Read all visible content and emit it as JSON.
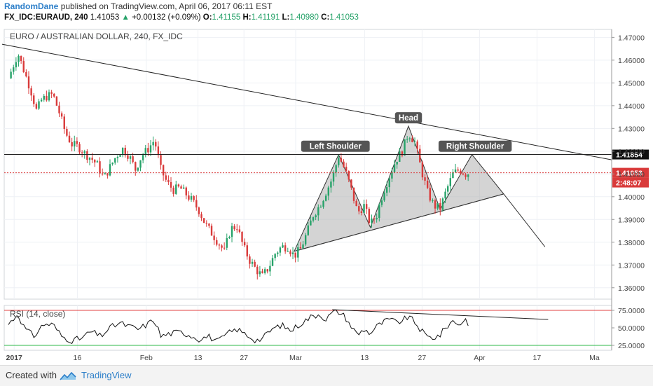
{
  "header": {
    "author": "RandomDane",
    "published": "published on TradingView.com, April 06, 2017 06:11 EST",
    "symbol": "FX_IDC:EURAUD, 240",
    "last": "1.41053",
    "change": "+0.00132 (+0.09%)",
    "o_label": "O:",
    "o_value": "1.41155",
    "h_label": "H:",
    "h_value": "1.41191",
    "l_label": "L:",
    "l_value": "1.40980",
    "c_label": "C:",
    "c_value": "1.41053",
    "up_glyph": "▲"
  },
  "chart_data": {
    "type": "candlestick",
    "title": "EURO / AUSTRALIAN DOLLAR, 240, FX_IDC",
    "ylim": [
      1.355,
      1.4735
    ],
    "y_ticks": [
      "1.36000",
      "1.37000",
      "1.38000",
      "1.39000",
      "1.40000",
      "1.41000",
      "1.42000",
      "1.43000",
      "1.44000",
      "1.45000",
      "1.46000",
      "1.47000"
    ],
    "x_ticks": [
      "2017",
      "16",
      "Feb",
      "13",
      "27",
      "Mar",
      "13",
      "27",
      "Apr",
      "17",
      "Ma"
    ],
    "price_labels": {
      "resistance": "1.41854",
      "last": "1.41053",
      "countdown": "2:48:07"
    },
    "horizontal_line": 1.41854,
    "last_price_line": 1.41053,
    "path": [
      {
        "t": 0,
        "p": 1.452
      },
      {
        "t": 3,
        "p": 1.463
      },
      {
        "t": 5,
        "p": 1.455
      },
      {
        "t": 7,
        "p": 1.447
      },
      {
        "t": 9,
        "p": 1.437
      },
      {
        "t": 10,
        "p": 1.442
      },
      {
        "t": 12,
        "p": 1.444
      },
      {
        "t": 14,
        "p": 1.445
      },
      {
        "t": 16,
        "p": 1.437
      },
      {
        "t": 18,
        "p": 1.428
      },
      {
        "t": 20,
        "p": 1.423
      },
      {
        "t": 22,
        "p": 1.422
      },
      {
        "t": 24,
        "p": 1.419
      },
      {
        "t": 26,
        "p": 1.417
      },
      {
        "t": 28,
        "p": 1.414
      },
      {
        "t": 30,
        "p": 1.408
      },
      {
        "t": 32,
        "p": 1.413
      },
      {
        "t": 34,
        "p": 1.418
      },
      {
        "t": 36,
        "p": 1.421
      },
      {
        "t": 38,
        "p": 1.418
      },
      {
        "t": 40,
        "p": 1.412
      },
      {
        "t": 42,
        "p": 1.418
      },
      {
        "t": 44,
        "p": 1.421
      },
      {
        "t": 46,
        "p": 1.425
      },
      {
        "t": 48,
        "p": 1.412
      },
      {
        "t": 50,
        "p": 1.406
      },
      {
        "t": 52,
        "p": 1.403
      },
      {
        "t": 54,
        "p": 1.404
      },
      {
        "t": 56,
        "p": 1.401
      },
      {
        "t": 58,
        "p": 1.398
      },
      {
        "t": 60,
        "p": 1.394
      },
      {
        "t": 62,
        "p": 1.388
      },
      {
        "t": 64,
        "p": 1.384
      },
      {
        "t": 66,
        "p": 1.38
      },
      {
        "t": 68,
        "p": 1.376
      },
      {
        "t": 70,
        "p": 1.386
      },
      {
        "t": 72,
        "p": 1.387
      },
      {
        "t": 74,
        "p": 1.378
      },
      {
        "t": 76,
        "p": 1.372
      },
      {
        "t": 78,
        "p": 1.368
      },
      {
        "t": 80,
        "p": 1.365
      },
      {
        "t": 82,
        "p": 1.369
      },
      {
        "t": 84,
        "p": 1.375
      },
      {
        "t": 86,
        "p": 1.378
      },
      {
        "t": 88,
        "p": 1.378
      },
      {
        "t": 90,
        "p": 1.374
      },
      {
        "t": 92,
        "p": 1.377
      },
      {
        "t": 94,
        "p": 1.384
      },
      {
        "t": 96,
        "p": 1.392
      },
      {
        "t": 98,
        "p": 1.396
      },
      {
        "t": 100,
        "p": 1.402
      },
      {
        "t": 102,
        "p": 1.408
      },
      {
        "t": 104,
        "p": 1.418
      },
      {
        "t": 106,
        "p": 1.412
      },
      {
        "t": 108,
        "p": 1.403
      },
      {
        "t": 110,
        "p": 1.393
      },
      {
        "t": 112,
        "p": 1.396
      },
      {
        "t": 114,
        "p": 1.388
      },
      {
        "t": 116,
        "p": 1.392
      },
      {
        "t": 118,
        "p": 1.402
      },
      {
        "t": 120,
        "p": 1.409
      },
      {
        "t": 122,
        "p": 1.416
      },
      {
        "t": 124,
        "p": 1.42
      },
      {
        "t": 126,
        "p": 1.428
      },
      {
        "t": 128,
        "p": 1.424
      },
      {
        "t": 130,
        "p": 1.412
      },
      {
        "t": 132,
        "p": 1.402
      },
      {
        "t": 134,
        "p": 1.396
      },
      {
        "t": 136,
        "p": 1.395
      },
      {
        "t": 138,
        "p": 1.403
      },
      {
        "t": 140,
        "p": 1.41
      },
      {
        "t": 142,
        "p": 1.412
      },
      {
        "t": 144,
        "p": 1.41
      },
      {
        "t": 145,
        "p": 1.4105
      }
    ],
    "annotations": {
      "left_shoulder": "Left Shoulder",
      "head": "Head",
      "right_shoulder": "Right Shoulder"
    },
    "rsi": {
      "label": "RSI (14, close)",
      "ylim": [
        18,
        82
      ],
      "ticks": [
        "25.0000",
        "50.0000",
        "75.0000"
      ],
      "upper_level": 75,
      "lower_level": 25,
      "path": [
        {
          "t": 0,
          "p": 55
        },
        {
          "t": 3,
          "p": 70
        },
        {
          "t": 5,
          "p": 50
        },
        {
          "t": 8,
          "p": 38
        },
        {
          "t": 11,
          "p": 55
        },
        {
          "t": 14,
          "p": 55
        },
        {
          "t": 17,
          "p": 37
        },
        {
          "t": 20,
          "p": 32
        },
        {
          "t": 23,
          "p": 35
        },
        {
          "t": 26,
          "p": 45
        },
        {
          "t": 29,
          "p": 38
        },
        {
          "t": 32,
          "p": 50
        },
        {
          "t": 35,
          "p": 57
        },
        {
          "t": 38,
          "p": 52
        },
        {
          "t": 41,
          "p": 48
        },
        {
          "t": 44,
          "p": 56
        },
        {
          "t": 46,
          "p": 62
        },
        {
          "t": 48,
          "p": 38
        },
        {
          "t": 51,
          "p": 42
        },
        {
          "t": 54,
          "p": 44
        },
        {
          "t": 57,
          "p": 40
        },
        {
          "t": 60,
          "p": 34
        },
        {
          "t": 63,
          "p": 38
        },
        {
          "t": 66,
          "p": 30
        },
        {
          "t": 69,
          "p": 42
        },
        {
          "t": 72,
          "p": 48
        },
        {
          "t": 75,
          "p": 40
        },
        {
          "t": 78,
          "p": 32
        },
        {
          "t": 80,
          "p": 35
        },
        {
          "t": 83,
          "p": 48
        },
        {
          "t": 86,
          "p": 54
        },
        {
          "t": 89,
          "p": 46
        },
        {
          "t": 92,
          "p": 56
        },
        {
          "t": 95,
          "p": 65
        },
        {
          "t": 98,
          "p": 70
        },
        {
          "t": 100,
          "p": 62
        },
        {
          "t": 102,
          "p": 72
        },
        {
          "t": 104,
          "p": 73
        },
        {
          "t": 106,
          "p": 66
        },
        {
          "t": 108,
          "p": 52
        },
        {
          "t": 110,
          "p": 40
        },
        {
          "t": 112,
          "p": 48
        },
        {
          "t": 114,
          "p": 42
        },
        {
          "t": 116,
          "p": 52
        },
        {
          "t": 118,
          "p": 58
        },
        {
          "t": 120,
          "p": 62
        },
        {
          "t": 122,
          "p": 58
        },
        {
          "t": 124,
          "p": 60
        },
        {
          "t": 126,
          "p": 66
        },
        {
          "t": 128,
          "p": 58
        },
        {
          "t": 130,
          "p": 46
        },
        {
          "t": 132,
          "p": 37
        },
        {
          "t": 134,
          "p": 36
        },
        {
          "t": 136,
          "p": 40
        },
        {
          "t": 138,
          "p": 52
        },
        {
          "t": 140,
          "p": 60
        },
        {
          "t": 142,
          "p": 55
        },
        {
          "t": 144,
          "p": 62
        },
        {
          "t": 145,
          "p": 56
        }
      ]
    }
  },
  "footer": {
    "created_with": "Created with",
    "brand": "TradingView"
  },
  "colors": {
    "up": "#26a269",
    "down": "#d93a3a",
    "grid": "#eef1f5",
    "pattern_fill": "#b0b0b0",
    "rsi_upper": "#e04040",
    "rsi_lower": "#2db84a",
    "brand": "#2d7fc9"
  }
}
